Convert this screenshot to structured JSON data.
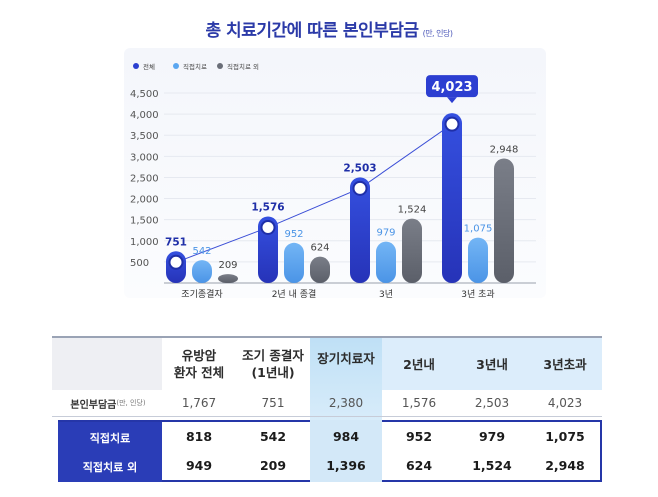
{
  "title": "총 치료기간에 따른 본인부담금",
  "title_unit": "(만, 인당)",
  "chart_data": {
    "type": "bar",
    "categories": [
      "조기종결자",
      "2년 내 종결",
      "3년",
      "3년 초과"
    ],
    "series": [
      {
        "name": "전체",
        "values": [
          751,
          1576,
          2503,
          4023
        ],
        "color": "#2a3fd0"
      },
      {
        "name": "직접치료",
        "values": [
          542,
          952,
          979,
          1075
        ],
        "color": "#5aa6f0"
      },
      {
        "name": "직접치료 외",
        "values": [
          209,
          624,
          1524,
          2948
        ],
        "color": "#6a6e78"
      }
    ],
    "value_labels": [
      [
        "751",
        "542",
        "209"
      ],
      [
        "1,576",
        "952",
        "624"
      ],
      [
        "2,503",
        "979",
        "1,524"
      ],
      [
        "4,023",
        "1,075",
        "2,948"
      ]
    ],
    "yticks": [
      "500",
      "1,000",
      "1,500",
      "2,000",
      "2,500",
      "3,000",
      "3,500",
      "4,000",
      "4,500"
    ],
    "ytick_values": [
      500,
      1000,
      1500,
      2000,
      2500,
      3000,
      3500,
      4000,
      4500
    ],
    "ylim": [
      0,
      4500
    ],
    "legend_position": "top-left",
    "trend_line": "전체",
    "highlight_value": "4,023"
  },
  "table": {
    "headers": [
      [
        "유방암",
        "환자 전체"
      ],
      [
        "조기 종결자",
        "(1년내)"
      ],
      [
        "장기치료자"
      ],
      [
        "2년내"
      ],
      [
        "3년내"
      ],
      [
        "3년초과"
      ]
    ],
    "row1_label": "본인부담금",
    "row1_unit": "(만, 인당)",
    "row1": [
      "1,767",
      "751",
      "2,380",
      "1,576",
      "2,503",
      "4,023"
    ],
    "row2_label": "직접치료",
    "row2": [
      "818",
      "542",
      "984",
      "952",
      "979",
      "1,075"
    ],
    "row3_label": "직접치료 외",
    "row3": [
      "949",
      "209",
      "1,396",
      "624",
      "1,524",
      "2,948"
    ]
  }
}
